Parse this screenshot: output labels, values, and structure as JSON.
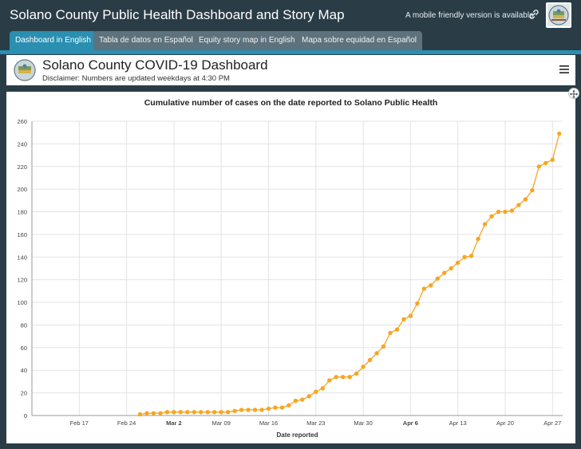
{
  "header": {
    "site_title": "Solano County Public Health Dashboard and Story Map",
    "mobile_note": "A mobile friendly version is available",
    "link_icon": "link-icon",
    "logo": "county-seal-logo"
  },
  "tabs": [
    {
      "label": "Dashboard in English",
      "active": true
    },
    {
      "label": "Tabla de datos en Español",
      "active": false
    },
    {
      "label": "Equity story map in English",
      "active": false
    },
    {
      "label": "Mapa sobre equidad en Español",
      "active": false
    }
  ],
  "dashboard": {
    "title": "Solano County COVID-19 Dashboard",
    "disclaimer": "Disclaimer: Numbers are updated weekdays at 4:30 PM",
    "menu_icon": "hamburger-menu-icon"
  },
  "colors": {
    "page_bg": "#2a3d47",
    "active_tab": "#2a8fb0",
    "inactive_tab": "#5e727d",
    "series": "#f5a623"
  },
  "chart_data": {
    "type": "line",
    "title": "Cumulative number of cases on the date reported to Solano Public Health",
    "xlabel": "Date reported",
    "ylabel": "",
    "ylim": [
      0,
      260
    ],
    "yticks": [
      0,
      20,
      40,
      60,
      80,
      100,
      120,
      140,
      160,
      180,
      200,
      220,
      240,
      260
    ],
    "xticks": [
      {
        "label": "Feb 17",
        "day": 17,
        "bold": false
      },
      {
        "label": "Feb 24",
        "day": 24,
        "bold": false
      },
      {
        "label": "Mar 2",
        "day": 31,
        "bold": true
      },
      {
        "label": "Mar 09",
        "day": 38,
        "bold": false
      },
      {
        "label": "Mar 16",
        "day": 45,
        "bold": false
      },
      {
        "label": "Mar 23",
        "day": 52,
        "bold": false
      },
      {
        "label": "Mar 30",
        "day": 59,
        "bold": false
      },
      {
        "label": "Apr 6",
        "day": 66,
        "bold": true
      },
      {
        "label": "Apr 13",
        "day": 73,
        "bold": false
      },
      {
        "label": "Apr 20",
        "day": 80,
        "bold": false
      },
      {
        "label": "Apr 27",
        "day": 87,
        "bold": false
      }
    ],
    "grid": true,
    "series": [
      {
        "x": [
          26,
          27,
          28,
          29,
          30,
          31,
          32,
          33,
          34,
          35,
          36,
          37,
          38,
          39,
          40,
          41,
          42,
          43,
          44,
          45,
          46,
          47,
          48,
          49,
          50,
          51,
          52,
          53,
          54,
          55,
          56,
          57,
          58,
          59,
          60,
          61,
          62,
          63,
          64,
          65,
          66,
          67,
          68,
          69,
          70,
          71,
          72,
          73,
          74,
          75,
          76,
          77,
          78,
          79,
          80,
          81,
          82,
          83,
          84,
          85,
          86,
          87,
          88
        ],
        "y": [
          1,
          2,
          2,
          2,
          3,
          3,
          3,
          3,
          3,
          3,
          3,
          3,
          3,
          3,
          4,
          5,
          5,
          5,
          5,
          6,
          7,
          7,
          9,
          13,
          14,
          17,
          21,
          24,
          31,
          34,
          34,
          34,
          37,
          43,
          49,
          55,
          61,
          73,
          76,
          85,
          88,
          99,
          112,
          115,
          121,
          126,
          130,
          135,
          140,
          141,
          156,
          169,
          176,
          180,
          180,
          181,
          186,
          191,
          199,
          220,
          223,
          226,
          249
        ]
      }
    ]
  }
}
